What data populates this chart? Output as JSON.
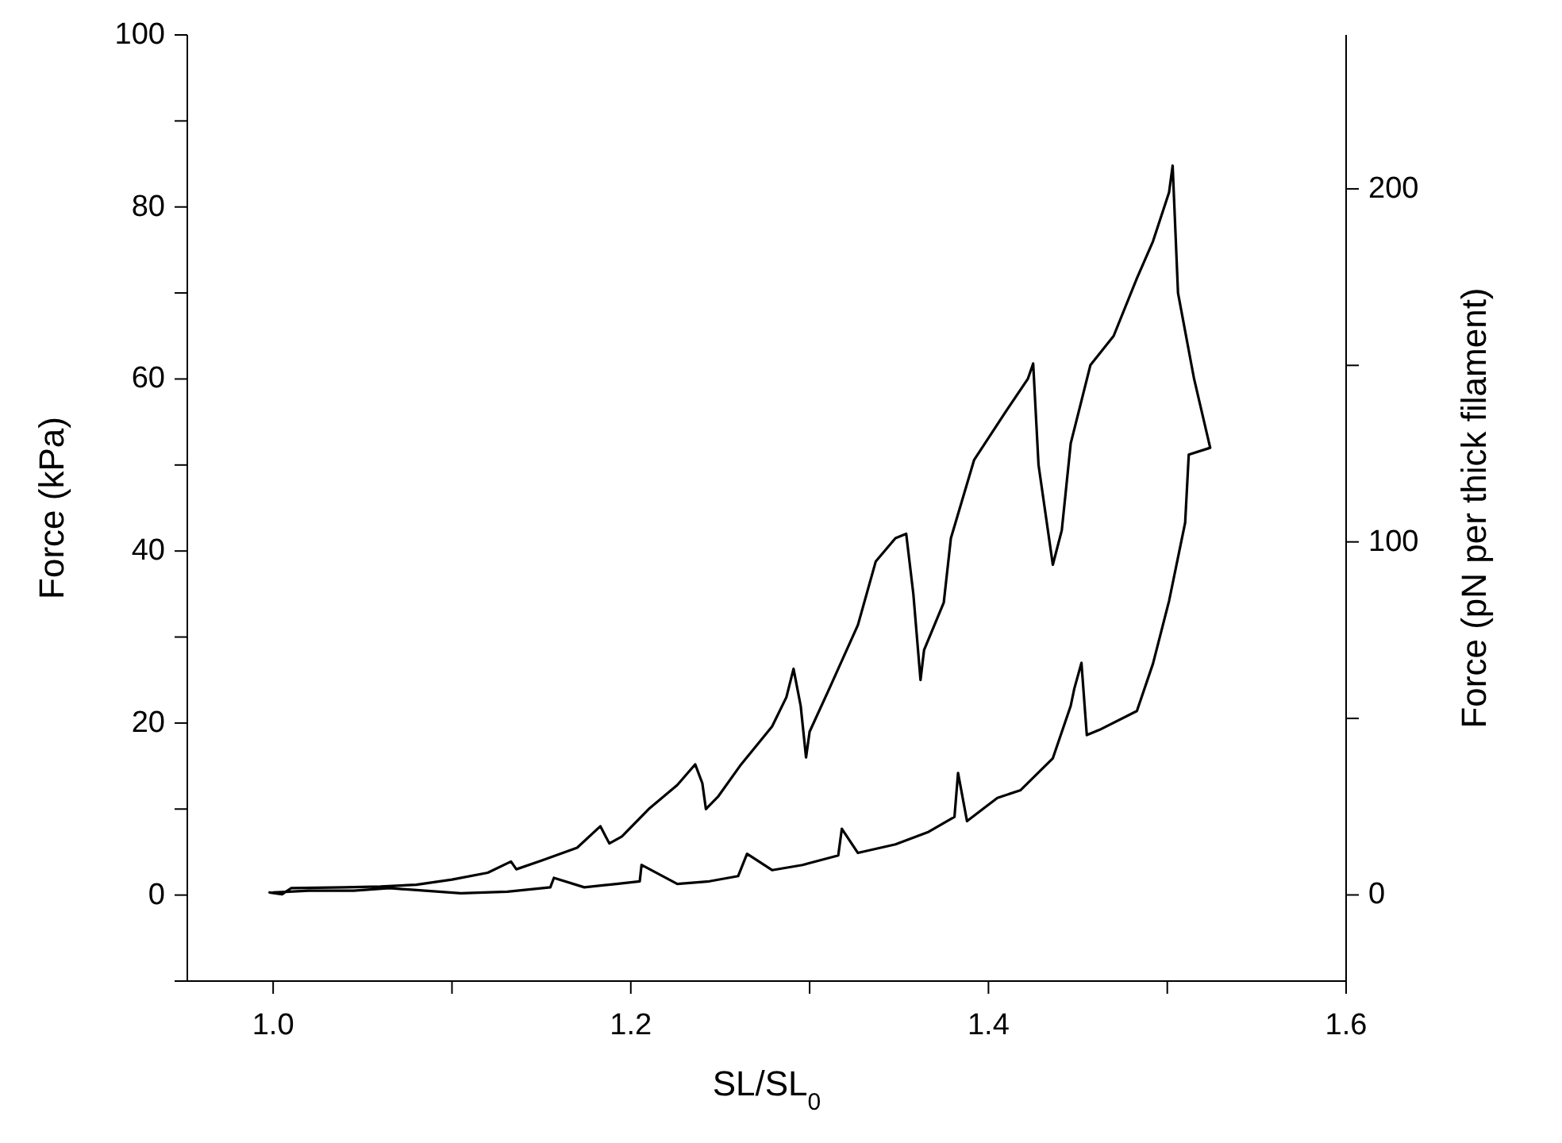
{
  "chart_data": {
    "type": "line",
    "xlabel": "SL/SL$_{0}$",
    "ylabel": "Force (kPa)",
    "y2label": "Force (pN per thick filament)",
    "xlim": [
      0.952,
      1.6
    ],
    "xticks": [
      {
        "value": 1.0,
        "label": "1.0"
      },
      {
        "value": 1.1,
        "label": null
      },
      {
        "value": 1.2,
        "label": "1.2"
      },
      {
        "value": 1.3,
        "label": null
      },
      {
        "value": 1.4,
        "label": "1.4"
      },
      {
        "value": 1.5,
        "label": null
      },
      {
        "value": 1.6,
        "label": "1.6"
      }
    ],
    "ylim": [
      -10,
      100
    ],
    "yticks": [
      {
        "value": -10,
        "label": null
      },
      0,
      {
        "value": 10,
        "label": null
      },
      20,
      {
        "value": 30,
        "label": null
      },
      40,
      {
        "value": 50,
        "label": null
      },
      60,
      {
        "value": 70,
        "label": null
      },
      80,
      {
        "value": 90,
        "label": null
      },
      100
    ],
    "y2lim": [
      -24.4,
      243.6
    ],
    "y2ticks": [
      0,
      {
        "value": 50,
        "label": null
      },
      100,
      {
        "value": 150,
        "label": null
      },
      200
    ],
    "grid": false,
    "legend": false,
    "marker": "none",
    "line_style": "solid",
    "series": [
      {
        "color": "#000000",
        "x": [
          0.998,
          1.005,
          1.01,
          1.04,
          1.06,
          1.08,
          1.1,
          1.12,
          1.133,
          1.136,
          1.15,
          1.17,
          1.183,
          1.188,
          1.195,
          1.21,
          1.226,
          1.236,
          1.24,
          1.242,
          1.249,
          1.261,
          1.279,
          1.287,
          1.291,
          1.295,
          1.298,
          1.3,
          1.311,
          1.327,
          1.337,
          1.348,
          1.354,
          1.358,
          1.362,
          1.364,
          1.375,
          1.379,
          1.392,
          1.409,
          1.422,
          1.425,
          1.428,
          1.436,
          1.441,
          1.446,
          1.457,
          1.47,
          1.483,
          1.492,
          1.501,
          1.503,
          1.506,
          1.515,
          1.524,
          1.512,
          1.51,
          1.501,
          1.492,
          1.483,
          1.462,
          1.455,
          1.452,
          1.448,
          1.446,
          1.436,
          1.418,
          1.405,
          1.388,
          1.383,
          1.381,
          1.366,
          1.348,
          1.327,
          1.318,
          1.316,
          1.296,
          1.279,
          1.265,
          1.26,
          1.244,
          1.226,
          1.206,
          1.205,
          1.192,
          1.174,
          1.157,
          1.155,
          1.131,
          1.105,
          1.085,
          1.065,
          1.045,
          1.02,
          1.0
        ],
        "values": [
          0.3,
          0.1,
          0.8,
          0.9,
          1.0,
          1.2,
          1.8,
          2.6,
          3.9,
          3.0,
          4.0,
          5.5,
          8.0,
          6.0,
          6.8,
          10.0,
          12.8,
          15.2,
          13.0,
          10.0,
          11.5,
          15.0,
          19.6,
          23.0,
          26.3,
          22.0,
          16.0,
          19.0,
          24.0,
          31.4,
          38.8,
          41.5,
          42.0,
          35.0,
          25.0,
          28.5,
          34.0,
          41.5,
          50.6,
          56.0,
          60.0,
          61.8,
          50.0,
          38.4,
          42.4,
          52.5,
          61.6,
          65.0,
          71.7,
          76.0,
          81.7,
          84.8,
          70.0,
          60.0,
          52.0,
          51.2,
          43.3,
          34.2,
          26.9,
          21.4,
          19.2,
          18.6,
          27.0,
          24.0,
          22.0,
          15.9,
          12.2,
          11.3,
          8.6,
          14.2,
          9.1,
          7.3,
          5.9,
          4.9,
          7.7,
          4.6,
          3.5,
          2.9,
          4.8,
          2.2,
          1.6,
          1.3,
          3.5,
          1.6,
          1.3,
          0.9,
          2.0,
          0.9,
          0.4,
          0.2,
          0.5,
          0.8,
          0.5,
          0.5,
          0.3
        ]
      }
    ]
  }
}
